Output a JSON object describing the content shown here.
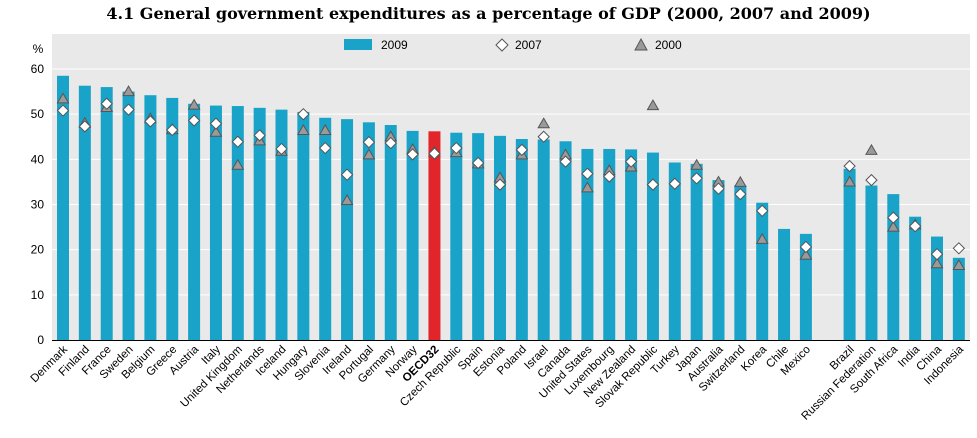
{
  "title": "4.1 General government expenditures as a percentage of GDP (2000, 2007 and 2009)",
  "chart_data": {
    "type": "bar",
    "ylabel": "%",
    "ylim": [
      0,
      60
    ],
    "yticks": [
      0,
      10,
      20,
      30,
      40,
      50,
      60
    ],
    "grid": true,
    "legend_position": "top",
    "colors": {
      "bar": "#1AA3C8",
      "highlight": "#E2242B",
      "marker_2007": "#ffffff",
      "marker_2000": "#9a9a9a"
    },
    "series": [
      {
        "name": "2009",
        "type": "bar"
      },
      {
        "name": "2007",
        "type": "marker",
        "shape": "diamond"
      },
      {
        "name": "2000",
        "type": "marker",
        "shape": "triangle"
      }
    ],
    "categories": [
      {
        "label": "Denmark",
        "v2009": 58.5,
        "v2007": 50.8,
        "v2000": 53.5
      },
      {
        "label": "Finland",
        "v2009": 56.3,
        "v2007": 47.3,
        "v2000": 48.1
      },
      {
        "label": "France",
        "v2009": 56.0,
        "v2007": 52.3,
        "v2000": 51.6
      },
      {
        "label": "Sweden",
        "v2009": 55.0,
        "v2007": 51.0,
        "v2000": 55.1
      },
      {
        "label": "Belgium",
        "v2009": 54.2,
        "v2007": 48.4,
        "v2000": 49.1
      },
      {
        "label": "Greece",
        "v2009": 53.6,
        "v2007": 46.5,
        "v2000": 46.7
      },
      {
        "label": "Austria",
        "v2009": 52.3,
        "v2007": 48.6,
        "v2000": 52.1
      },
      {
        "label": "Italy",
        "v2009": 51.9,
        "v2007": 47.9,
        "v2000": 46.1
      },
      {
        "label": "United Kingdom",
        "v2009": 51.8,
        "v2007": 43.9,
        "v2000": 38.8
      },
      {
        "label": "Netherlands",
        "v2009": 51.4,
        "v2007": 45.3,
        "v2000": 44.2
      },
      {
        "label": "Iceland",
        "v2009": 51.0,
        "v2007": 42.3,
        "v2000": 41.9
      },
      {
        "label": "Hungary",
        "v2009": 50.5,
        "v2007": 50.0,
        "v2000": 46.5
      },
      {
        "label": "Slovenia",
        "v2009": 49.2,
        "v2007": 42.5,
        "v2000": 46.5
      },
      {
        "label": "Ireland",
        "v2009": 48.9,
        "v2007": 36.6,
        "v2000": 31.0
      },
      {
        "label": "Portugal",
        "v2009": 48.2,
        "v2007": 43.8,
        "v2000": 41.1
      },
      {
        "label": "Germany",
        "v2009": 47.6,
        "v2007": 43.6,
        "v2000": 45.1
      },
      {
        "label": "Norway",
        "v2009": 46.3,
        "v2007": 41.1,
        "v2000": 42.3
      },
      {
        "label": "OECD32",
        "v2009": 46.2,
        "v2007": 41.3,
        "v2000": 41.7,
        "highlight": true
      },
      {
        "label": "Czech Republic",
        "v2009": 45.9,
        "v2007": 42.5,
        "v2000": 41.6
      },
      {
        "label": "Spain",
        "v2009": 45.8,
        "v2007": 39.2,
        "v2000": 39.1
      },
      {
        "label": "Estonia",
        "v2009": 45.2,
        "v2007": 34.4,
        "v2000": 36.0
      },
      {
        "label": "Poland",
        "v2009": 44.5,
        "v2007": 42.1,
        "v2000": 41.1
      },
      {
        "label": "Israel",
        "v2009": 44.4,
        "v2007": 45.0,
        "v2000": 48.0
      },
      {
        "label": "Canada",
        "v2009": 44.0,
        "v2007": 39.5,
        "v2000": 41.1
      },
      {
        "label": "United States",
        "v2009": 42.3,
        "v2007": 36.8,
        "v2000": 33.8
      },
      {
        "label": "Luxembourg",
        "v2009": 42.3,
        "v2007": 36.2,
        "v2000": 37.6
      },
      {
        "label": "New Zealand",
        "v2009": 42.2,
        "v2007": 39.5,
        "v2000": 38.4
      },
      {
        "label": "Slovak Republic",
        "v2009": 41.5,
        "v2007": 34.4,
        "v2000": 52.0
      },
      {
        "label": "Turkey",
        "v2009": 39.3,
        "v2007": 34.6,
        "v2000": null
      },
      {
        "label": "Japan",
        "v2009": 39.0,
        "v2007": 35.8,
        "v2000": 38.8
      },
      {
        "label": "Australia",
        "v2009": 35.4,
        "v2007": 33.5,
        "v2000": 35.1
      },
      {
        "label": "Switzerland",
        "v2009": 34.2,
        "v2007": 32.3,
        "v2000": 35.0
      },
      {
        "label": "Korea",
        "v2009": 30.4,
        "v2007": 28.6,
        "v2000": 22.4
      },
      {
        "label": "Chile",
        "v2009": 24.6,
        "v2007": null,
        "v2000": null
      },
      {
        "label": "Mexico",
        "v2009": 23.5,
        "v2007": 20.6,
        "v2000": 18.9
      },
      {
        "label": "",
        "gap": true
      },
      {
        "label": "Brazil",
        "v2009": 37.9,
        "v2007": 38.5,
        "v2000": 35.1
      },
      {
        "label": "Russian Federation",
        "v2009": 34.2,
        "v2007": 35.4,
        "v2000": 42.1
      },
      {
        "label": "South Africa",
        "v2009": 32.3,
        "v2007": 27.1,
        "v2000": 25.1
      },
      {
        "label": "India",
        "v2009": 27.3,
        "v2007": 25.2,
        "v2000": 25.6
      },
      {
        "label": "China",
        "v2009": 22.9,
        "v2007": 19.0,
        "v2000": 17.0
      },
      {
        "label": "Indonesia",
        "v2009": 18.2,
        "v2007": 20.3,
        "v2000": 16.6
      }
    ]
  }
}
